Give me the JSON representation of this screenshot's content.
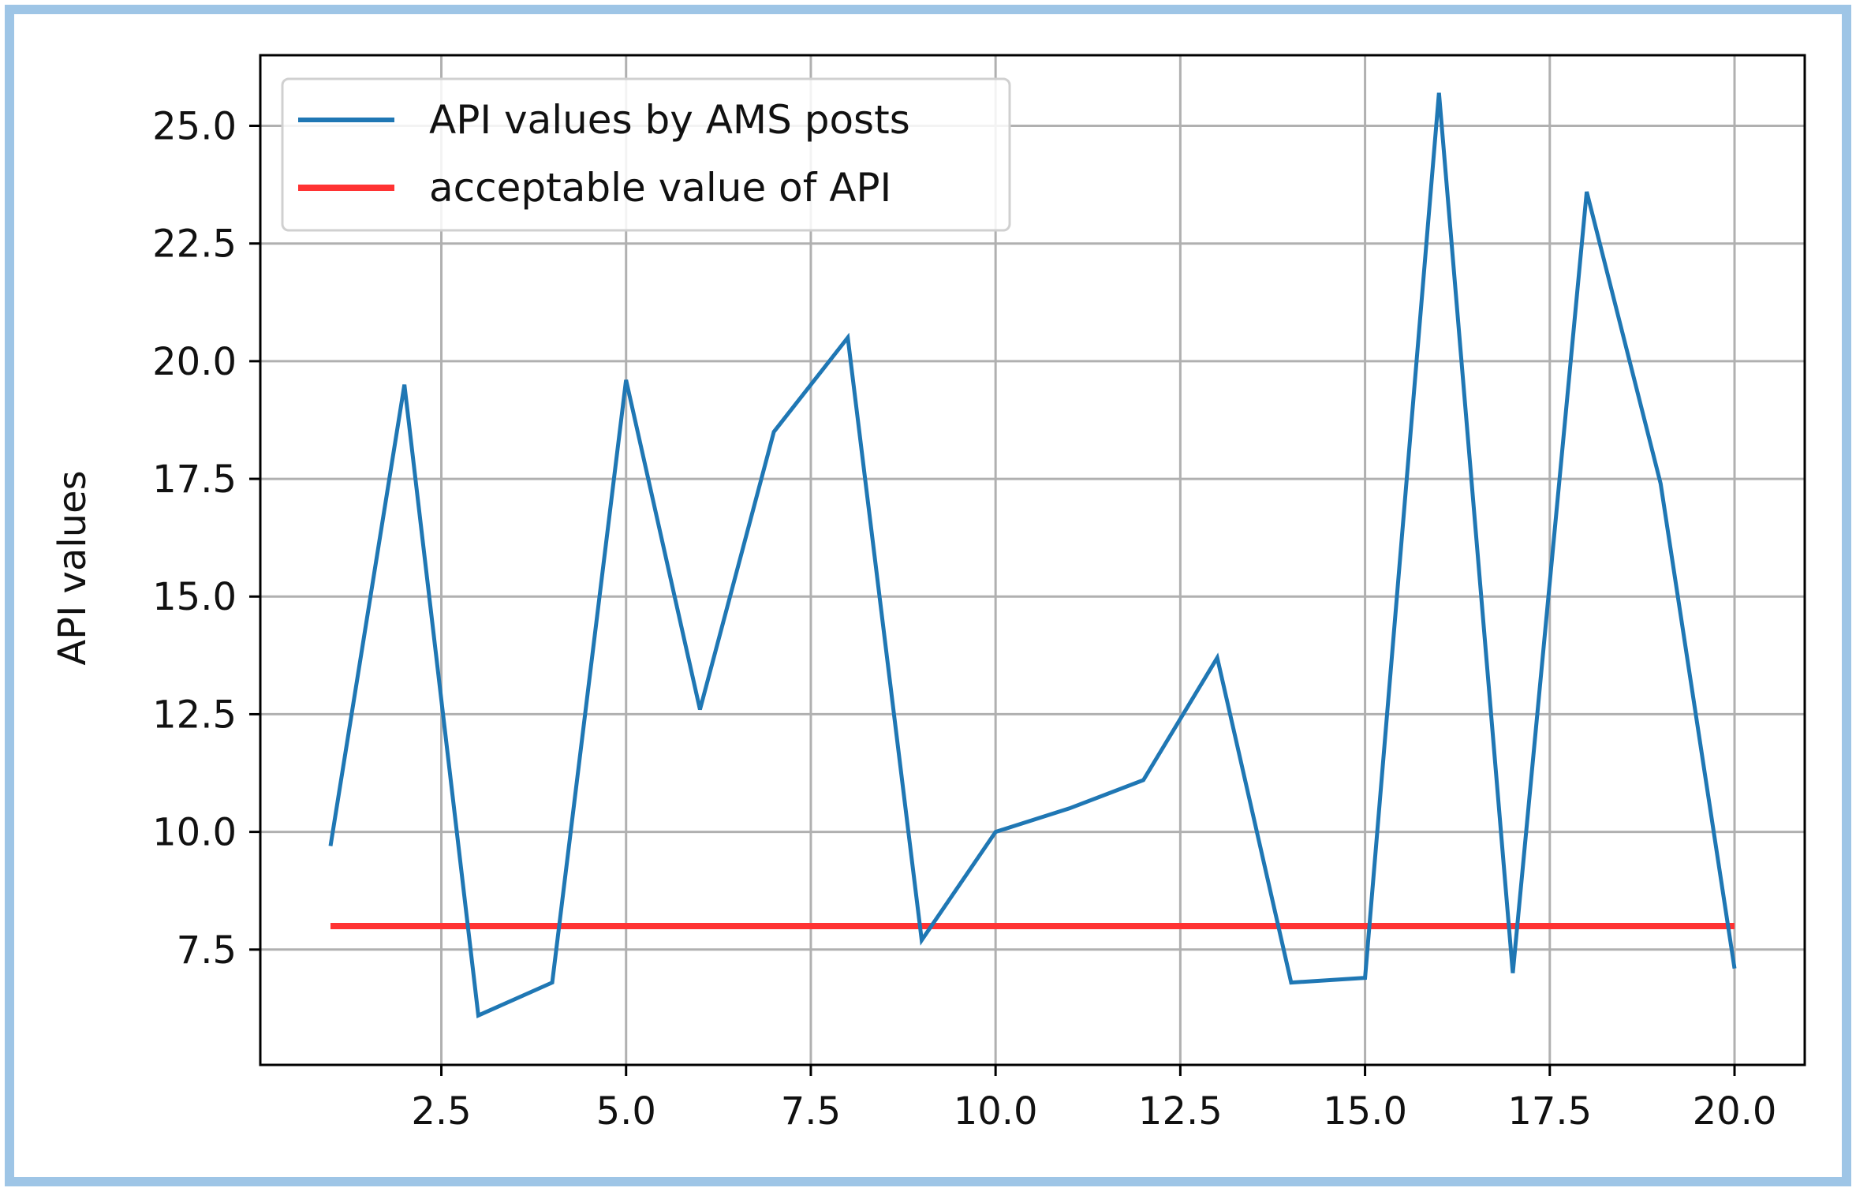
{
  "chart_data": {
    "type": "line",
    "ylabel": "API values",
    "xlim": [
      0.05,
      20.95
    ],
    "ylim": [
      5.05,
      26.5
    ],
    "grid": true,
    "legend_position": "upper-left",
    "x_ticks": [
      2.5,
      5.0,
      7.5,
      10.0,
      12.5,
      15.0,
      17.5,
      20.0
    ],
    "x_tick_labels": [
      "2.5",
      "5.0",
      "7.5",
      "10.0",
      "12.5",
      "15.0",
      "17.5",
      "20.0"
    ],
    "y_ticks": [
      7.5,
      10.0,
      12.5,
      15.0,
      17.5,
      20.0,
      22.5,
      25.0
    ],
    "y_tick_labels": [
      "7.5",
      "10.0",
      "12.5",
      "15.0",
      "17.5",
      "20.0",
      "22.5",
      "25.0"
    ],
    "series": [
      {
        "name": "API values by AMS posts",
        "color": "#1f77b4",
        "x": [
          1,
          2,
          3,
          4,
          5,
          6,
          7,
          8,
          9,
          10,
          11,
          12,
          13,
          14,
          15,
          16,
          17,
          18,
          19,
          20
        ],
        "y": [
          9.7,
          19.5,
          6.1,
          6.8,
          19.6,
          12.6,
          18.5,
          20.5,
          7.7,
          10.0,
          10.5,
          11.1,
          13.7,
          6.8,
          6.9,
          25.7,
          7.0,
          23.6,
          17.4,
          7.1
        ]
      },
      {
        "name": "acceptable value of API",
        "color": "#ff3333",
        "x": [
          1,
          20
        ],
        "y": [
          8.0,
          8.0
        ]
      }
    ]
  },
  "frame_color": "#9ec5e6"
}
